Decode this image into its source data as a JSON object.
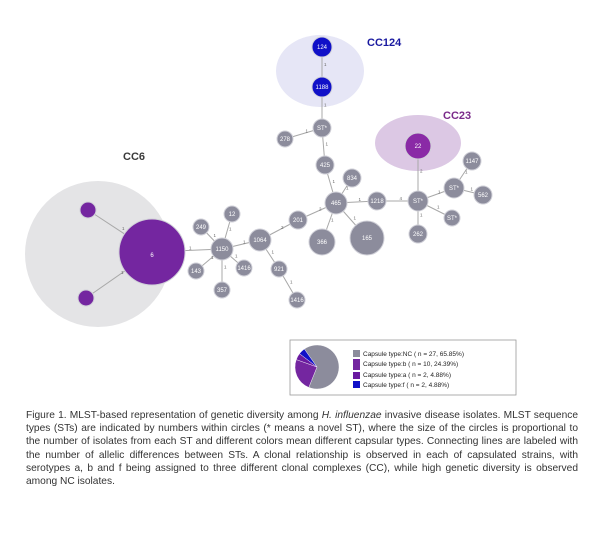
{
  "clusters": [
    {
      "id": "cc6",
      "label": "CC6",
      "label_color": "#3a3a3a",
      "fill": "#e4e4e6"
    },
    {
      "id": "cc124",
      "label": "CC124",
      "label_color": "#1a1aa0",
      "fill": "#e6e6f6"
    },
    {
      "id": "cc23",
      "label": "CC23",
      "label_color": "#7a2a8a",
      "fill": "#dcc8e4"
    }
  ],
  "nodes": [
    {
      "id": "n124",
      "label": "124",
      "type": "f"
    },
    {
      "id": "n1188",
      "label": "1188",
      "type": "f"
    },
    {
      "id": "n22",
      "label": "22",
      "type": "a"
    },
    {
      "id": "n6",
      "label": "6",
      "type": "b"
    },
    {
      "id": "nb1",
      "label": "",
      "type": "b"
    },
    {
      "id": "nb2",
      "label": "",
      "type": "b"
    },
    {
      "id": "nST1",
      "label": "ST*",
      "type": "NC"
    },
    {
      "id": "n278",
      "label": "278",
      "type": "NC"
    },
    {
      "id": "n425",
      "label": "425",
      "type": "NC"
    },
    {
      "id": "n834",
      "label": "834",
      "type": "NC"
    },
    {
      "id": "n465",
      "label": "465",
      "type": "NC"
    },
    {
      "id": "n165",
      "label": "165",
      "type": "NC"
    },
    {
      "id": "n366",
      "label": "366",
      "type": "NC"
    },
    {
      "id": "n1218",
      "label": "1218",
      "type": "NC"
    },
    {
      "id": "nST2",
      "label": "ST*",
      "type": "NC"
    },
    {
      "id": "nST3",
      "label": "ST*",
      "type": "NC"
    },
    {
      "id": "nST4",
      "label": "ST*",
      "type": "NC"
    },
    {
      "id": "n1147",
      "label": "1147",
      "type": "NC"
    },
    {
      "id": "n562",
      "label": "562",
      "type": "NC"
    },
    {
      "id": "n262",
      "label": "262",
      "type": "NC"
    },
    {
      "id": "n201",
      "label": "201",
      "type": "NC"
    },
    {
      "id": "n1064",
      "label": "1064",
      "type": "NC"
    },
    {
      "id": "n1150",
      "label": "1150",
      "type": "NC"
    },
    {
      "id": "n249",
      "label": "249",
      "type": "NC"
    },
    {
      "id": "n12",
      "label": "12",
      "type": "NC"
    },
    {
      "id": "n143",
      "label": "143",
      "type": "NC"
    },
    {
      "id": "n357",
      "label": "357",
      "type": "NC"
    },
    {
      "id": "n1416",
      "label": "1416",
      "type": "NC"
    },
    {
      "id": "n921",
      "label": "921",
      "type": "NC"
    },
    {
      "id": "n1416b",
      "label": "1416",
      "type": "NC"
    }
  ],
  "edges": [
    {
      "from": "n124",
      "to": "n1188",
      "label": "1"
    },
    {
      "from": "n1188",
      "to": "nST1",
      "label": "1"
    },
    {
      "from": "nST1",
      "to": "n278",
      "label": "1"
    },
    {
      "from": "nST1",
      "to": "n425",
      "label": "1"
    },
    {
      "from": "n425",
      "to": "n465",
      "label": "1"
    },
    {
      "from": "n834",
      "to": "n465",
      "label": "1"
    },
    {
      "from": "n465",
      "to": "n165",
      "label": "1"
    },
    {
      "from": "n465",
      "to": "n366",
      "label": "1"
    },
    {
      "from": "n465",
      "to": "n1218",
      "label": "1"
    },
    {
      "from": "n465",
      "to": "n201",
      "label": "2"
    },
    {
      "from": "n1218",
      "to": "nST2",
      "label": "4"
    },
    {
      "from": "nST2",
      "to": "n22",
      "label": "2"
    },
    {
      "from": "nST2",
      "to": "nST3",
      "label": "1"
    },
    {
      "from": "nST2",
      "to": "nST4",
      "label": "1"
    },
    {
      "from": "nST2",
      "to": "n262",
      "label": "1"
    },
    {
      "from": "nST3",
      "to": "n1147",
      "label": "1"
    },
    {
      "from": "nST3",
      "to": "n562",
      "label": "1"
    },
    {
      "from": "n201",
      "to": "n1064",
      "label": "2"
    },
    {
      "from": "n1064",
      "to": "n1150",
      "label": "1"
    },
    {
      "from": "n1064",
      "to": "n921",
      "label": "1"
    },
    {
      "from": "n921",
      "to": "n1416b",
      "label": "1"
    },
    {
      "from": "n1150",
      "to": "n6",
      "label": "1"
    },
    {
      "from": "n1150",
      "to": "n249",
      "label": "1"
    },
    {
      "from": "n1150",
      "to": "n12",
      "label": "1"
    },
    {
      "from": "n1150",
      "to": "n143",
      "label": "1"
    },
    {
      "from": "n1150",
      "to": "n357",
      "label": "1"
    },
    {
      "from": "n1150",
      "to": "n1416",
      "label": "1"
    },
    {
      "from": "n6",
      "to": "nb1",
      "label": "1"
    },
    {
      "from": "n6",
      "to": "nb2",
      "label": "1"
    }
  ],
  "capsule_colors": {
    "NC": "#8c8c9c",
    "b": "#7426a0",
    "a": "#8a2aa6",
    "f": "#1010c8"
  },
  "legend": {
    "items": [
      {
        "label": "Capsule type:NC ( n = 27, 65.85%)",
        "color": "#8c8c9c"
      },
      {
        "label": "Capsule type:b ( n = 10, 24.39%)",
        "color": "#7426a0"
      },
      {
        "label": "Capsule type:a ( n = 2, 4.88%)",
        "color": "#6a1aa0"
      },
      {
        "label": "Capsule type:f ( n = 2, 4.88%)",
        "color": "#1010c8"
      }
    ],
    "pie": [
      {
        "type": "NC",
        "percent": 65.85,
        "color": "#8c8c9c"
      },
      {
        "type": "b",
        "percent": 24.39,
        "color": "#7426a0"
      },
      {
        "type": "a",
        "percent": 4.88,
        "color": "#6a1aa0"
      },
      {
        "type": "f",
        "percent": 4.88,
        "color": "#1010c8"
      }
    ]
  },
  "caption": {
    "part1": "Figure 1. MLST-based representation of genetic diversity among ",
    "species": "H. influenzae",
    "part2": " invasive disease isolates. MLST sequence types (STs) are indicated by numbers within circles (* means a novel ST), where the size of the circles is proportional to the number of isolates from each ST and different colors mean different capsular types. Connecting lines are labeled with the number of allelic differences between STs. A clonal relationship is observed in each of capsulated strains, with serotypes a, b and f being assigned to three different clonal complexes (CC), while high genetic diversity is observed among NC isolates."
  }
}
